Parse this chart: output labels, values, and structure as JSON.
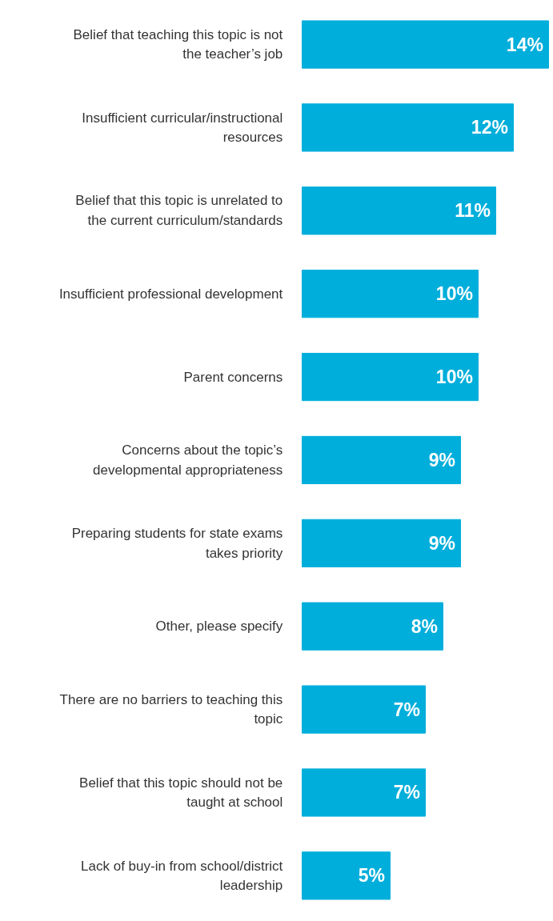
{
  "chart_data": {
    "type": "bar",
    "orientation": "horizontal",
    "categories": [
      "Belief that teaching this topic is not the teacher’s job",
      "Insufficient curricular/instructional resources",
      "Belief that this topic is unrelated to the current curriculum/standards",
      "Insufficient professional development",
      "Parent concerns",
      "Concerns about the topic’s developmental appropriateness",
      "Preparing students for state exams takes priority",
      "Other, please specify",
      "There are no barriers to teaching this topic",
      "Belief that this topic should not be taught at school",
      "Lack of buy-in from school/district leadership"
    ],
    "values": [
      14,
      12,
      11,
      10,
      10,
      9,
      9,
      8,
      7,
      7,
      5
    ],
    "value_labels": [
      "14%",
      "12%",
      "11%",
      "10%",
      "10%",
      "9%",
      "9%",
      "8%",
      "7%",
      "7%",
      "5%"
    ],
    "color": "#00aedb"
  }
}
